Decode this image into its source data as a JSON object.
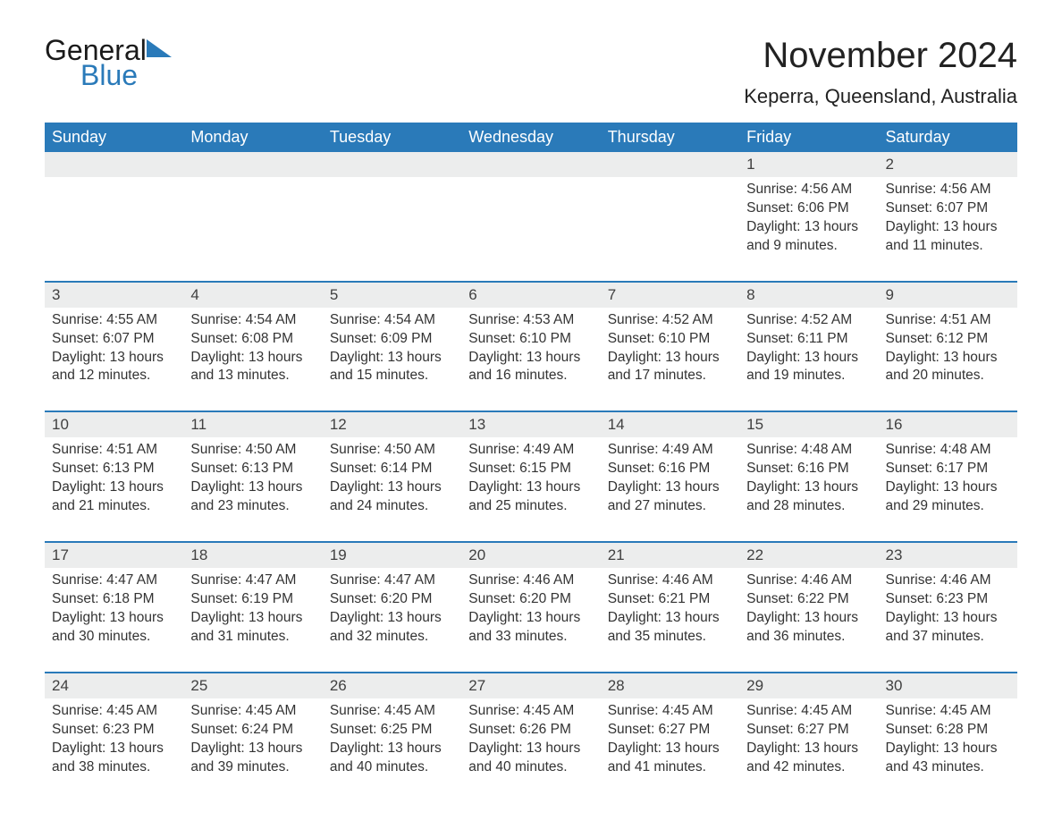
{
  "logo": {
    "word1": "General",
    "word2": "Blue"
  },
  "title": "November 2024",
  "location": "Keperra, Queensland, Australia",
  "colors": {
    "header_bg": "#2a7ab9",
    "header_text": "#ffffff",
    "daynum_bg": "#eceded",
    "rule": "#2a7ab9",
    "text": "#333333",
    "page_bg": "#ffffff"
  },
  "fonts": {
    "title_size_pt": 30,
    "location_size_pt": 16,
    "header_size_pt": 14,
    "body_size_pt": 12
  },
  "columns": [
    "Sunday",
    "Monday",
    "Tuesday",
    "Wednesday",
    "Thursday",
    "Friday",
    "Saturday"
  ],
  "labels": {
    "sunrise": "Sunrise",
    "sunset": "Sunset",
    "daylight": "Daylight"
  },
  "weeks": [
    [
      null,
      null,
      null,
      null,
      null,
      {
        "day": "1",
        "sunrise": "4:56 AM",
        "sunset": "6:06 PM",
        "daylight": "13 hours and 9 minutes."
      },
      {
        "day": "2",
        "sunrise": "4:56 AM",
        "sunset": "6:07 PM",
        "daylight": "13 hours and 11 minutes."
      }
    ],
    [
      {
        "day": "3",
        "sunrise": "4:55 AM",
        "sunset": "6:07 PM",
        "daylight": "13 hours and 12 minutes."
      },
      {
        "day": "4",
        "sunrise": "4:54 AM",
        "sunset": "6:08 PM",
        "daylight": "13 hours and 13 minutes."
      },
      {
        "day": "5",
        "sunrise": "4:54 AM",
        "sunset": "6:09 PM",
        "daylight": "13 hours and 15 minutes."
      },
      {
        "day": "6",
        "sunrise": "4:53 AM",
        "sunset": "6:10 PM",
        "daylight": "13 hours and 16 minutes."
      },
      {
        "day": "7",
        "sunrise": "4:52 AM",
        "sunset": "6:10 PM",
        "daylight": "13 hours and 17 minutes."
      },
      {
        "day": "8",
        "sunrise": "4:52 AM",
        "sunset": "6:11 PM",
        "daylight": "13 hours and 19 minutes."
      },
      {
        "day": "9",
        "sunrise": "4:51 AM",
        "sunset": "6:12 PM",
        "daylight": "13 hours and 20 minutes."
      }
    ],
    [
      {
        "day": "10",
        "sunrise": "4:51 AM",
        "sunset": "6:13 PM",
        "daylight": "13 hours and 21 minutes."
      },
      {
        "day": "11",
        "sunrise": "4:50 AM",
        "sunset": "6:13 PM",
        "daylight": "13 hours and 23 minutes."
      },
      {
        "day": "12",
        "sunrise": "4:50 AM",
        "sunset": "6:14 PM",
        "daylight": "13 hours and 24 minutes."
      },
      {
        "day": "13",
        "sunrise": "4:49 AM",
        "sunset": "6:15 PM",
        "daylight": "13 hours and 25 minutes."
      },
      {
        "day": "14",
        "sunrise": "4:49 AM",
        "sunset": "6:16 PM",
        "daylight": "13 hours and 27 minutes."
      },
      {
        "day": "15",
        "sunrise": "4:48 AM",
        "sunset": "6:16 PM",
        "daylight": "13 hours and 28 minutes."
      },
      {
        "day": "16",
        "sunrise": "4:48 AM",
        "sunset": "6:17 PM",
        "daylight": "13 hours and 29 minutes."
      }
    ],
    [
      {
        "day": "17",
        "sunrise": "4:47 AM",
        "sunset": "6:18 PM",
        "daylight": "13 hours and 30 minutes."
      },
      {
        "day": "18",
        "sunrise": "4:47 AM",
        "sunset": "6:19 PM",
        "daylight": "13 hours and 31 minutes."
      },
      {
        "day": "19",
        "sunrise": "4:47 AM",
        "sunset": "6:20 PM",
        "daylight": "13 hours and 32 minutes."
      },
      {
        "day": "20",
        "sunrise": "4:46 AM",
        "sunset": "6:20 PM",
        "daylight": "13 hours and 33 minutes."
      },
      {
        "day": "21",
        "sunrise": "4:46 AM",
        "sunset": "6:21 PM",
        "daylight": "13 hours and 35 minutes."
      },
      {
        "day": "22",
        "sunrise": "4:46 AM",
        "sunset": "6:22 PM",
        "daylight": "13 hours and 36 minutes."
      },
      {
        "day": "23",
        "sunrise": "4:46 AM",
        "sunset": "6:23 PM",
        "daylight": "13 hours and 37 minutes."
      }
    ],
    [
      {
        "day": "24",
        "sunrise": "4:45 AM",
        "sunset": "6:23 PM",
        "daylight": "13 hours and 38 minutes."
      },
      {
        "day": "25",
        "sunrise": "4:45 AM",
        "sunset": "6:24 PM",
        "daylight": "13 hours and 39 minutes."
      },
      {
        "day": "26",
        "sunrise": "4:45 AM",
        "sunset": "6:25 PM",
        "daylight": "13 hours and 40 minutes."
      },
      {
        "day": "27",
        "sunrise": "4:45 AM",
        "sunset": "6:26 PM",
        "daylight": "13 hours and 40 minutes."
      },
      {
        "day": "28",
        "sunrise": "4:45 AM",
        "sunset": "6:27 PM",
        "daylight": "13 hours and 41 minutes."
      },
      {
        "day": "29",
        "sunrise": "4:45 AM",
        "sunset": "6:27 PM",
        "daylight": "13 hours and 42 minutes."
      },
      {
        "day": "30",
        "sunrise": "4:45 AM",
        "sunset": "6:28 PM",
        "daylight": "13 hours and 43 minutes."
      }
    ]
  ]
}
